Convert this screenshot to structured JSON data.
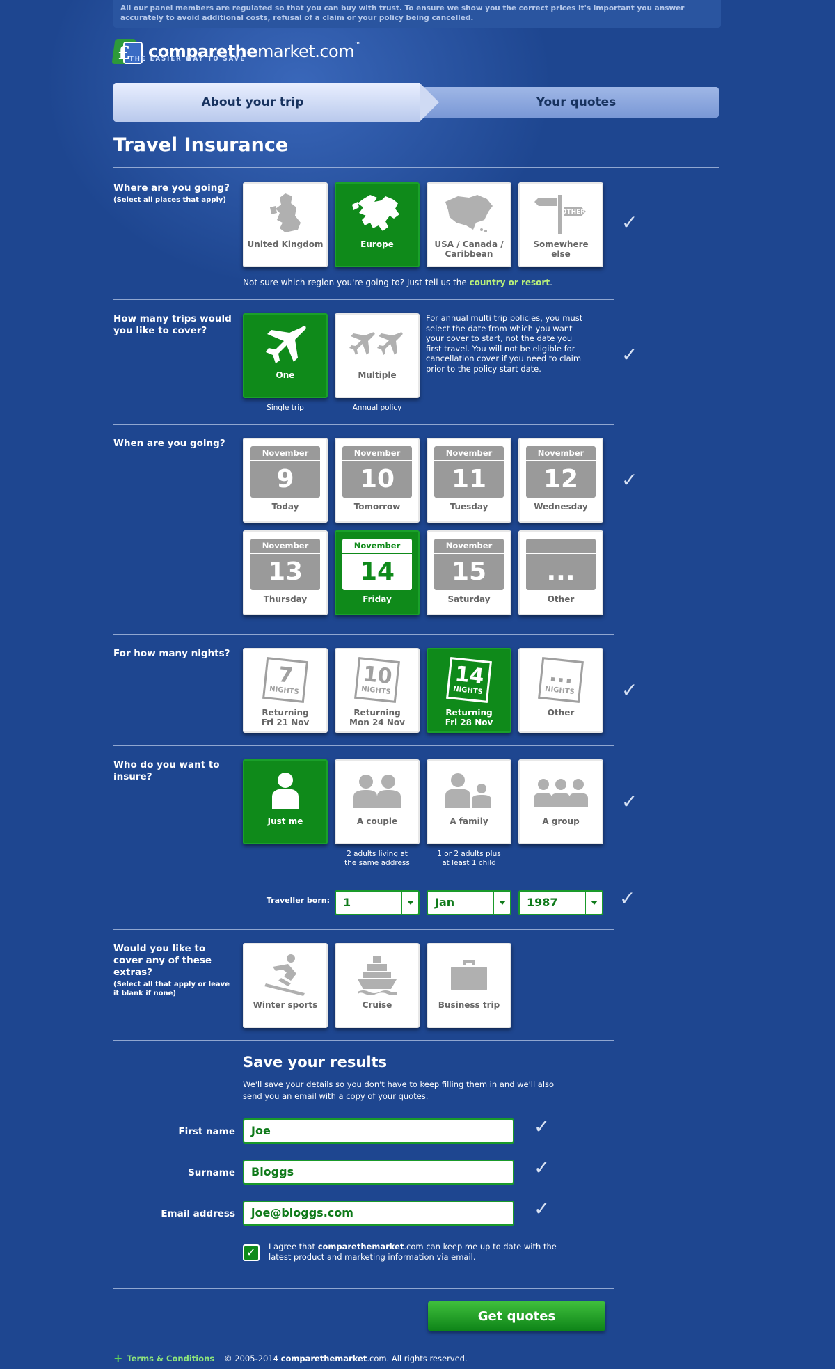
{
  "notice": "All our panel members are regulated so that you can buy with trust. To ensure we show you the correct prices it's important you answer accurately to avoid additional costs, refusal of a claim or your policy being cancelled.",
  "logo": {
    "brand_bold": "comparethe",
    "brand_mid": "market",
    "brand_end": ".com",
    "tm": "™",
    "tagline": "THE EASIER WAY TO SAVE"
  },
  "steps": {
    "step1": "About your trip",
    "step2": "Your quotes"
  },
  "title": "Travel Insurance",
  "destination": {
    "question": "Where are you going?",
    "hint": "(Select all places that apply)",
    "options": [
      {
        "label": "United Kingdom",
        "selected": false,
        "icon": "uk-map-icon"
      },
      {
        "label": "Europe",
        "selected": true,
        "icon": "europe-map-icon"
      },
      {
        "label": "USA / Canada / Caribbean",
        "selected": false,
        "icon": "north-america-map-icon"
      },
      {
        "label": "Somewhere else",
        "selected": false,
        "icon": "signpost-icon"
      }
    ],
    "note_prefix": "Not sure which region you're going to? Just tell us the ",
    "note_link": "country or resort",
    "note_suffix": "."
  },
  "trips": {
    "question": "How many trips would you like to cover?",
    "options": [
      {
        "label": "One",
        "sub": "Single trip",
        "selected": true
      },
      {
        "label": "Multiple",
        "sub": "Annual policy",
        "selected": false
      }
    ],
    "side_note": "For annual multi trip policies, you must select the date from which you want your cover to start, not the date you first travel. You will not be eligible for cancellation cover if you need to claim prior to the policy start date."
  },
  "when": {
    "question": "When are you going?",
    "dates": [
      {
        "month": "November",
        "day": "9",
        "label": "Today",
        "selected": false
      },
      {
        "month": "November",
        "day": "10",
        "label": "Tomorrow",
        "selected": false
      },
      {
        "month": "November",
        "day": "11",
        "label": "Tuesday",
        "selected": false
      },
      {
        "month": "November",
        "day": "12",
        "label": "Wednesday",
        "selected": false
      },
      {
        "month": "November",
        "day": "13",
        "label": "Thursday",
        "selected": false
      },
      {
        "month": "November",
        "day": "14",
        "label": "Friday",
        "selected": true
      },
      {
        "month": "November",
        "day": "15",
        "label": "Saturday",
        "selected": false
      },
      {
        "month": "",
        "day": "...",
        "label": "Other",
        "selected": false
      }
    ]
  },
  "nights": {
    "question": "For how many nights?",
    "options": [
      {
        "num": "7",
        "unit": "NIGHTS",
        "line1": "Returning",
        "line2": "Fri 21 Nov",
        "selected": false
      },
      {
        "num": "10",
        "unit": "NIGHTS",
        "line1": "Returning",
        "line2": "Mon 24 Nov",
        "selected": false
      },
      {
        "num": "14",
        "unit": "NIGHTS",
        "line1": "Returning",
        "line2": "Fri 28 Nov",
        "selected": true
      },
      {
        "num": "...",
        "unit": "NIGHTS",
        "line1": "Other",
        "line2": "",
        "selected": false
      }
    ]
  },
  "who": {
    "question": "Who do you want to insure?",
    "options": [
      {
        "label": "Just me",
        "sub1": "",
        "sub2": "",
        "selected": true
      },
      {
        "label": "A couple",
        "sub1": "2 adults living at",
        "sub2": "the same address",
        "selected": false
      },
      {
        "label": "A family",
        "sub1": "1 or 2 adults plus",
        "sub2": "at least 1 child",
        "selected": false
      },
      {
        "label": "A group",
        "sub1": "",
        "sub2": "",
        "selected": false
      }
    ],
    "born_label": "Traveller born:",
    "born_day": "1",
    "born_month": "Jan",
    "born_year": "1987"
  },
  "extras": {
    "question": "Would you like to cover any of these extras?",
    "hint": "(Select all that apply or leave it blank if none)",
    "options": [
      {
        "label": "Winter sports",
        "selected": false
      },
      {
        "label": "Cruise",
        "selected": false
      },
      {
        "label": "Business trip",
        "selected": false
      }
    ]
  },
  "save": {
    "title": "Save your results",
    "desc": "We'll save your details so you don't have to keep filling them in and we'll also send you an email with a copy of your quotes.",
    "first_name_label": "First name",
    "first_name": "Joe",
    "surname_label": "Surname",
    "surname": "Bloggs",
    "email_label": "Email address",
    "email": "joe@bloggs.com",
    "agree_prefix": "I agree that ",
    "agree_brand": "comparethemarket",
    "agree_suffix": ".com can keep me up to date with the latest product and marketing information via email.",
    "agree_checked": true
  },
  "cta": "Get quotes",
  "footer": {
    "tc": "Terms & Conditions",
    "copy_prefix": "© 2005-2014 ",
    "copy_brand": "comparethemarket",
    "copy_suffix": ".com. All rights reserved."
  },
  "colors": {
    "background": "#1e4690",
    "selected": "#0f8a1a",
    "tick": "#d8e2f4",
    "link": "#b8f07a"
  }
}
